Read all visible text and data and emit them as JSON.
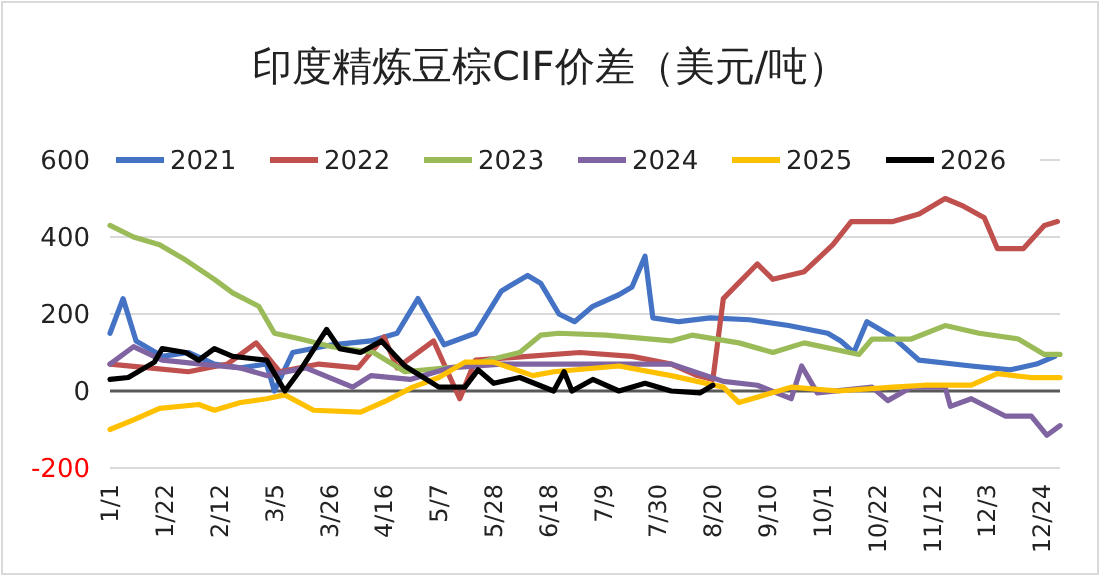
{
  "chart_data": {
    "type": "line",
    "title": "印度精炼豆棕CIF价差（美元/吨）",
    "legend": "top",
    "grid": "y",
    "line_style": "solid",
    "marker": "none",
    "xlim": [
      "--01-01",
      "--12-31"
    ],
    "xticks": [
      {
        "value": "--01-01",
        "label": "1/1"
      },
      {
        "value": "--01-22",
        "label": "1/22"
      },
      {
        "value": "--02-12",
        "label": "2/12"
      },
      {
        "value": "--03-05",
        "label": "3/5"
      },
      {
        "value": "--03-26",
        "label": "3/26"
      },
      {
        "value": "--04-16",
        "label": "4/16"
      },
      {
        "value": "--05-07",
        "label": "5/7"
      },
      {
        "value": "--05-28",
        "label": "5/28"
      },
      {
        "value": "--06-18",
        "label": "6/18"
      },
      {
        "value": "--07-09",
        "label": "7/9"
      },
      {
        "value": "--07-30",
        "label": "7/30"
      },
      {
        "value": "--08-20",
        "label": "8/20"
      },
      {
        "value": "--09-10",
        "label": "9/10"
      },
      {
        "value": "--10-01",
        "label": "10/1"
      },
      {
        "value": "--10-22",
        "label": "10/22"
      },
      {
        "value": "--11-12",
        "label": "11/12"
      },
      {
        "value": "--12-03",
        "label": "12/3"
      },
      {
        "value": "--12-24",
        "label": "12/24"
      }
    ],
    "ylim": [
      -200,
      600
    ],
    "yticks": [
      -200,
      0,
      200,
      400,
      600
    ],
    "series": [
      {
        "name": "2021",
        "color": "#4472c4",
        "x": [
          "--01-01",
          "--01-06",
          "--01-11",
          "--01-21",
          "--01-31",
          "--02-10",
          "--02-20",
          "--03-02",
          "--03-05",
          "--03-12",
          "--03-27",
          "--04-11",
          "--04-21",
          "--04-29",
          "--05-09",
          "--05-21",
          "--05-31",
          "--06-10",
          "--06-15",
          "--06-22",
          "--06-28",
          "--07-05",
          "--07-15",
          "--07-20",
          "--07-25",
          "--07-28",
          "--08-07",
          "--08-19",
          "--09-03",
          "--09-18",
          "--10-03",
          "--10-08",
          "--10-13",
          "--10-18",
          "--10-28",
          "--11-07",
          "--11-27",
          "--12-12",
          "--12-22",
          "--12-29"
        ],
        "values": [
          150,
          240,
          130,
          90,
          100,
          70,
          60,
          70,
          0,
          100,
          120,
          130,
          150,
          240,
          120,
          150,
          260,
          300,
          280,
          200,
          180,
          220,
          250,
          270,
          350,
          190,
          180,
          190,
          185,
          170,
          150,
          130,
          100,
          180,
          140,
          80,
          65,
          55,
          70,
          90
        ]
      },
      {
        "name": "2022",
        "color": "#c0504d",
        "x": [
          "--01-01",
          "--01-16",
          "--01-31",
          "--02-15",
          "--02-26",
          "--03-07",
          "--03-22",
          "--04-06",
          "--04-16",
          "--04-21",
          "--05-05",
          "--05-15",
          "--05-21",
          "--06-10",
          "--06-30",
          "--07-20",
          "--08-04",
          "--08-14",
          "--08-20",
          "--08-24",
          "--09-06",
          "--09-12",
          "--09-24",
          "--10-05",
          "--10-12",
          "--10-28",
          "--11-07",
          "--11-17",
          "--11-24",
          "--12-02",
          "--12-07",
          "--12-17",
          "--12-25",
          "--12-30"
        ],
        "values": [
          70,
          60,
          50,
          70,
          125,
          50,
          70,
          60,
          140,
          60,
          130,
          -20,
          80,
          90,
          100,
          90,
          70,
          40,
          30,
          240,
          330,
          290,
          310,
          380,
          440,
          440,
          460,
          500,
          480,
          450,
          370,
          370,
          430,
          440
        ]
      },
      {
        "name": "2023",
        "color": "#9bbb59",
        "x": [
          "--01-01",
          "--01-10",
          "--01-20",
          "--01-30",
          "--02-10",
          "--02-17",
          "--02-27",
          "--03-05",
          "--03-15",
          "--03-27",
          "--04-12",
          "--04-24",
          "--05-17",
          "--06-07",
          "--06-15",
          "--06-22",
          "--07-10",
          "--08-04",
          "--08-12",
          "--08-30",
          "--09-12",
          "--09-24",
          "--10-15",
          "--10-20",
          "--11-04",
          "--11-17",
          "--11-30",
          "--12-15",
          "--12-25",
          "--12-31"
        ],
        "values": [
          430,
          400,
          380,
          340,
          290,
          255,
          220,
          150,
          135,
          115,
          100,
          50,
          65,
          100,
          145,
          150,
          145,
          130,
          145,
          125,
          100,
          125,
          95,
          135,
          135,
          170,
          150,
          135,
          95,
          95
        ]
      },
      {
        "name": "2024",
        "color": "#8064a2",
        "x": [
          "--01-01",
          "--01-10",
          "--01-21",
          "--02-05",
          "--02-20",
          "--03-02",
          "--03-17",
          "--04-04",
          "--04-11",
          "--04-26",
          "--05-11",
          "--05-31",
          "--06-20",
          "--08-04",
          "--08-24",
          "--09-06",
          "--09-19",
          "--09-23",
          "--09-29",
          "--10-20",
          "--10-26",
          "--11-04",
          "--11-17",
          "--11-19",
          "--11-27",
          "--12-10",
          "--12-20",
          "--12-26",
          "--12-31"
        ],
        "values": [
          70,
          115,
          80,
          70,
          60,
          40,
          60,
          10,
          40,
          30,
          60,
          70,
          70,
          70,
          25,
          15,
          -20,
          65,
          -5,
          10,
          -25,
          10,
          10,
          -40,
          -20,
          -65,
          -65,
          -115,
          -90
        ]
      },
      {
        "name": "2025",
        "color": "#ffc000",
        "x": [
          "--01-01",
          "--01-10",
          "--01-20",
          "--02-04",
          "--02-10",
          "--02-20",
          "--03-02",
          "--03-09",
          "--03-20",
          "--04-07",
          "--04-17",
          "--04-27",
          "--05-07",
          "--05-17",
          "--05-28",
          "--06-12",
          "--06-20",
          "--07-15",
          "--08-04",
          "--08-24",
          "--08-30",
          "--09-19",
          "--10-07",
          "--10-28",
          "--11-09",
          "--11-27",
          "--12-07",
          "--12-20",
          "--12-31"
        ],
        "values": [
          -100,
          -75,
          -45,
          -35,
          -50,
          -30,
          -20,
          -10,
          -50,
          -55,
          -25,
          10,
          35,
          75,
          75,
          40,
          50,
          65,
          40,
          10,
          -30,
          10,
          0,
          10,
          15,
          15,
          45,
          35,
          35
        ]
      },
      {
        "name": "2026",
        "color": "#000000",
        "x": [
          "--01-01",
          "--01-08",
          "--01-18",
          "--01-21",
          "--01-30",
          "--02-04",
          "--02-10",
          "--02-17",
          "--03-02",
          "--03-09",
          "--03-15",
          "--03-25",
          "--03-30",
          "--04-07",
          "--04-15",
          "--04-24",
          "--05-07",
          "--05-17",
          "--05-22",
          "--05-28",
          "--06-07",
          "--06-20",
          "--06-24",
          "--06-27",
          "--07-05",
          "--07-15",
          "--07-25",
          "--08-04",
          "--08-15",
          "--08-20"
        ],
        "values": [
          30,
          35,
          75,
          110,
          100,
          80,
          110,
          90,
          80,
          0,
          55,
          160,
          110,
          100,
          130,
          65,
          10,
          10,
          55,
          20,
          35,
          0,
          50,
          0,
          30,
          0,
          20,
          0,
          -5,
          15
        ]
      }
    ]
  }
}
